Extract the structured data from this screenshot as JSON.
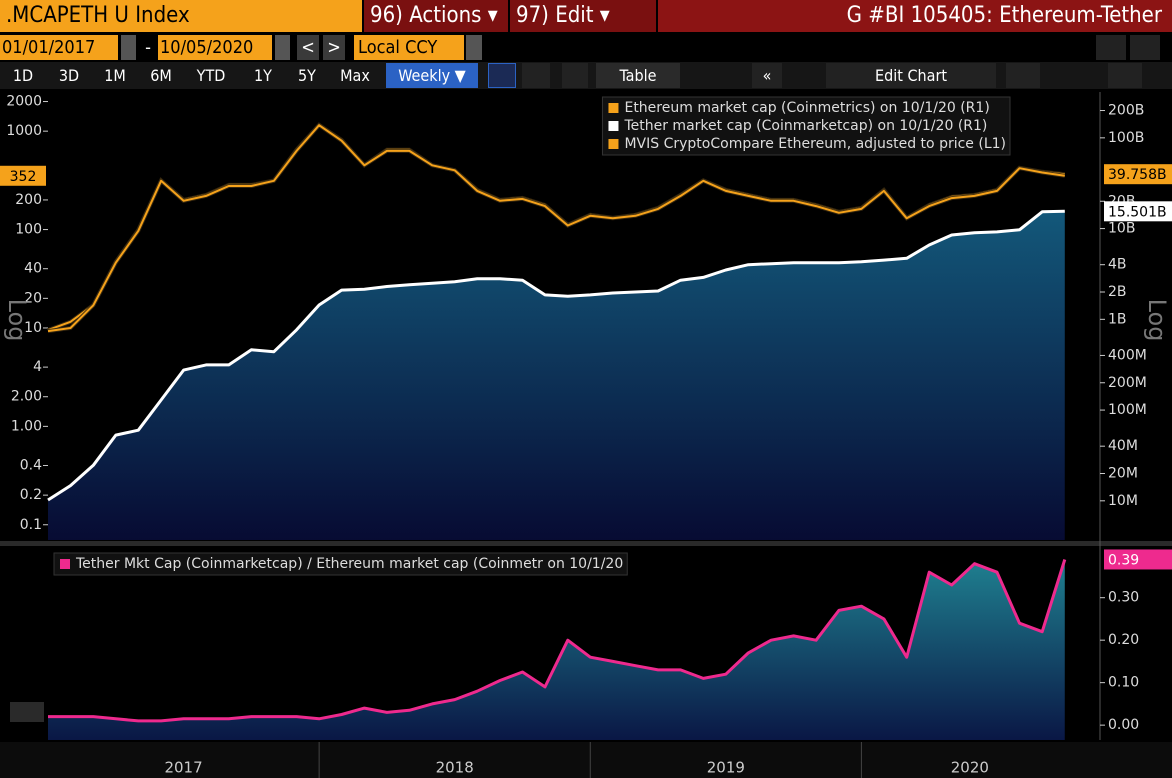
{
  "header": {
    "ticker": ".MCAPETH U Index",
    "actions": "96) Actions ▾",
    "edit": "97) Edit ▾",
    "title": "G #BI 105405: Ethereum-Tether"
  },
  "toolbar": {
    "start_date": "01/01/2017",
    "separator": "-",
    "end_date": "10/05/2020",
    "prev": "<",
    "next": ">",
    "currency": "Local CCY",
    "periods": [
      "1D",
      "3D",
      "1M",
      "6M",
      "YTD",
      "1Y",
      "5Y",
      "Max"
    ],
    "frequency": "Weekly ▼",
    "table": "Table",
    "collapse": "«",
    "edit_chart": "Edit Chart"
  },
  "chart_data": [
    {
      "type": "line",
      "log_scale": true,
      "legend": "top-right",
      "y_axis_label": "Log",
      "y2_axis_label": "Log",
      "x": [
        2017,
        2017.083,
        2017.167,
        2017.25,
        2017.333,
        2017.417,
        2017.5,
        2017.583,
        2017.667,
        2017.75,
        2017.833,
        2017.917,
        2018,
        2018.083,
        2018.167,
        2018.25,
        2018.333,
        2018.417,
        2018.5,
        2018.583,
        2018.667,
        2018.75,
        2018.833,
        2018.917,
        2019,
        2019.083,
        2019.167,
        2019.25,
        2019.333,
        2019.417,
        2019.5,
        2019.583,
        2019.667,
        2019.75,
        2019.833,
        2019.917,
        2020,
        2020.083,
        2020.167,
        2020.25,
        2020.333,
        2020.417,
        2020.5,
        2020.583,
        2020.667,
        2020.75
      ],
      "xlim": [
        2017,
        2020.88
      ],
      "ylim": [
        0.07,
        2500
      ],
      "yticks": [
        2000,
        1000,
        200,
        100,
        40,
        20,
        10,
        4,
        {
          "value": 2,
          "label": "2.00"
        },
        {
          "value": 1,
          "label": "1.00"
        },
        0.4,
        0.2,
        0.1
      ],
      "y2lim": [
        3700000,
        320000000000
      ],
      "y2ticks": [
        {
          "value": 200000000000,
          "label": "200B"
        },
        {
          "value": 100000000000,
          "label": "100B"
        },
        {
          "value": 20000000000,
          "label": "20B"
        },
        {
          "value": 10000000000,
          "label": "10B"
        },
        {
          "value": 4000000000,
          "label": "4B"
        },
        {
          "value": 2000000000,
          "label": "2B"
        },
        {
          "value": 1000000000,
          "label": "1B"
        },
        {
          "value": 400000000,
          "label": "400M"
        },
        {
          "value": 200000000,
          "label": "200M"
        },
        {
          "value": 100000000,
          "label": "100M"
        },
        {
          "value": 40000000,
          "label": "40M"
        },
        {
          "value": 20000000,
          "label": "20M"
        },
        {
          "value": 10000000,
          "label": "10M"
        }
      ],
      "series": [
        {
          "name": "Tether market cap (Coinmarketcap) on 10/1/20 (R1)",
          "color": "#ffffff",
          "axis": "y2",
          "fill": true,
          "last_value_label": "15.501B",
          "values": [
            10200000.0,
            14700000.0,
            24600000.0,
            53000000.0,
            60000000.0,
            129000000.0,
            276000000.0,
            315000000.0,
            315000000.0,
            462000000.0,
            440000000.0,
            766000000.0,
            1440000000.0,
            2100000000.0,
            2150000000.0,
            2300000000.0,
            2400000000.0,
            2500000000.0,
            2600000000.0,
            2800000000.0,
            2800000000.0,
            2700000000.0,
            1860000000.0,
            1800000000.0,
            1860000000.0,
            1950000000.0,
            2000000000.0,
            2050000000.0,
            2700000000.0,
            2900000000.0,
            3500000000.0,
            4000000000.0,
            4100000000.0,
            4200000000.0,
            4200000000.0,
            4200000000.0,
            4300000000.0,
            4500000000.0,
            4700000000.0,
            6600000000.0,
            8500000000.0,
            9000000000.0,
            9200000000.0,
            9700000000.0,
            15300000000.0,
            15501000000.0
          ]
        },
        {
          "name": "Ethereum market cap (Coinmetrics) on 10/1/20 (R1)",
          "color": "#f5a21b",
          "axis": "y2",
          "last_value_label": "39.758B",
          "values": [
            760000000.0,
            940000000.0,
            1440000000.0,
            4300000000.0,
            9700000000.0,
            34000000000.0,
            20700000000.0,
            23500000000.0,
            30300000000.0,
            30300000000.0,
            34000000000.0,
            74000000000.0,
            139000000000.0,
            95000000000.0,
            50000000000.0,
            74000000000.0,
            74000000000.0,
            50000000000.0,
            44000000000.0,
            26700000000.0,
            20700000000.0,
            21800000000.0,
            18200000000.0,
            11000000000.0,
            14200000000.0,
            13100000000.0,
            14200000000.0,
            16900000000.0,
            23500000000.0,
            34000000000.0,
            26700000000.0,
            23500000000.0,
            20700000000.0,
            20700000000.0,
            18200000000.0,
            15300000000.0,
            16900000000.0,
            26700000000.0,
            13100000000.0,
            18200000000.0,
            22400000000.0,
            23500000000.0,
            26700000000.0,
            46700000000.0,
            42200000000.0,
            39758000000.0
          ]
        },
        {
          "name": "MVIS CryptoCompare Ethereum, adjusted to price (L1)",
          "color": "#f5a21b",
          "last_value_label": "352",
          "values": [
            9.3,
            10,
            17,
            46,
            97,
            313,
            196,
            220,
            277,
            277,
            313,
            630,
            1150,
            800,
            450,
            630,
            630,
            450,
            400,
            247,
            196,
            205,
            173,
            110,
            138,
            130,
            138,
            162,
            220,
            313,
            247,
            220,
            196,
            196,
            173,
            148,
            162,
            247,
            130,
            173,
            209,
            220,
            247,
            420,
            380,
            352
          ]
        }
      ]
    },
    {
      "type": "line",
      "log_scale": false,
      "legend": "top-left",
      "y_axis_side": "right",
      "x": [
        2017,
        2017.083,
        2017.167,
        2017.25,
        2017.333,
        2017.417,
        2017.5,
        2017.583,
        2017.667,
        2017.75,
        2017.833,
        2017.917,
        2018,
        2018.083,
        2018.167,
        2018.25,
        2018.333,
        2018.417,
        2018.5,
        2018.583,
        2018.667,
        2018.75,
        2018.833,
        2018.917,
        2019,
        2019.083,
        2019.167,
        2019.25,
        2019.333,
        2019.417,
        2019.5,
        2019.583,
        2019.667,
        2019.75,
        2019.833,
        2019.917,
        2020,
        2020.083,
        2020.167,
        2020.25,
        2020.333,
        2020.417,
        2020.5,
        2020.583,
        2020.667,
        2020.75
      ],
      "xlim": [
        2017,
        2020.88
      ],
      "xticks": [
        2018,
        2019,
        2020
      ],
      "x_labels": [
        {
          "value": 2017.5,
          "label": "2017"
        },
        {
          "value": 2018.5,
          "label": "2018"
        },
        {
          "value": 2019.5,
          "label": "2019"
        },
        {
          "value": 2020.4,
          "label": "2020"
        }
      ],
      "ylim": [
        -0.035,
        0.417
      ],
      "yticks": [
        {
          "value": 0,
          "label": "0.00"
        },
        {
          "value": 0.1,
          "label": "0.10"
        },
        {
          "value": 0.2,
          "label": "0.20"
        },
        {
          "value": 0.3,
          "label": "0.30"
        }
      ],
      "series": [
        {
          "name": "Tether Mkt Cap (Coinmarketcap) / Ethereum market cap (Coinmetr on 10/1/20",
          "color": "#ee2a8e",
          "fill": true,
          "last_value_label": "0.39",
          "values": [
            0.02,
            0.02,
            0.02,
            0.015,
            0.01,
            0.01,
            0.015,
            0.015,
            0.015,
            0.02,
            0.02,
            0.02,
            0.015,
            0.025,
            0.04,
            0.03,
            0.035,
            0.05,
            0.06,
            0.08,
            0.105,
            0.125,
            0.09,
            0.2,
            0.16,
            0.15,
            0.14,
            0.13,
            0.13,
            0.11,
            0.12,
            0.17,
            0.2,
            0.21,
            0.2,
            0.27,
            0.28,
            0.25,
            0.16,
            0.36,
            0.33,
            0.38,
            0.36,
            0.24,
            0.22,
            0.39
          ]
        }
      ]
    }
  ]
}
